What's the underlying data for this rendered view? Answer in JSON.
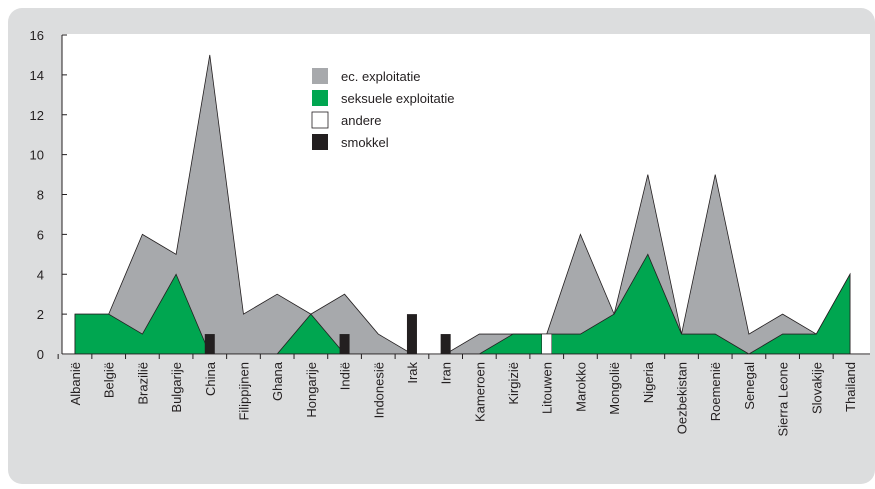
{
  "chart_data": {
    "type": "area",
    "categories": [
      "Albanië",
      "België",
      "Brazilië",
      "Bulgarije",
      "China",
      "Filippijnen",
      "Ghana",
      "Hongarije",
      "Indië",
      "Indonesië",
      "Irak",
      "Iran",
      "Kameroen",
      "Kirgizië",
      "Litouwen",
      "Marokko",
      "Mongolië",
      "Nigeria",
      "Oezbekistan",
      "Roemenië",
      "Senegal",
      "Sierra Leone",
      "Slovakije",
      "Thailand"
    ],
    "series": [
      {
        "name": "ec. exploitatie",
        "color": "#a7a9ac",
        "kind": "area",
        "values": [
          2,
          2,
          6,
          5,
          15,
          2,
          3,
          2,
          3,
          1,
          0,
          0,
          1,
          1,
          1,
          6,
          2,
          9,
          1,
          9,
          1,
          2,
          1,
          4
        ]
      },
      {
        "name": "seksuele exploitatie",
        "color": "#00a650",
        "kind": "area",
        "values": [
          2,
          2,
          1,
          4,
          0,
          0,
          0,
          2,
          0,
          0,
          0,
          0,
          0,
          1,
          1,
          1,
          2,
          5,
          1,
          1,
          0,
          1,
          1,
          4
        ]
      },
      {
        "name": "andere",
        "color": "#ffffff",
        "kind": "bar",
        "values": [
          0,
          0,
          0,
          0,
          0,
          0,
          0,
          0,
          0,
          0,
          0,
          0,
          0,
          0,
          1,
          0,
          0,
          0,
          0,
          0,
          0,
          0,
          0,
          0
        ]
      },
      {
        "name": "smokkel",
        "color": "#231f20",
        "kind": "bar",
        "values": [
          0,
          0,
          0,
          0,
          1,
          0,
          0,
          0,
          1,
          0,
          2,
          1,
          0,
          0,
          0,
          0,
          0,
          0,
          0,
          0,
          0,
          0,
          0,
          0
        ]
      }
    ],
    "ylim": [
      0,
      16
    ],
    "yticks": [
      0,
      2,
      4,
      6,
      8,
      10,
      12,
      14,
      16
    ]
  }
}
